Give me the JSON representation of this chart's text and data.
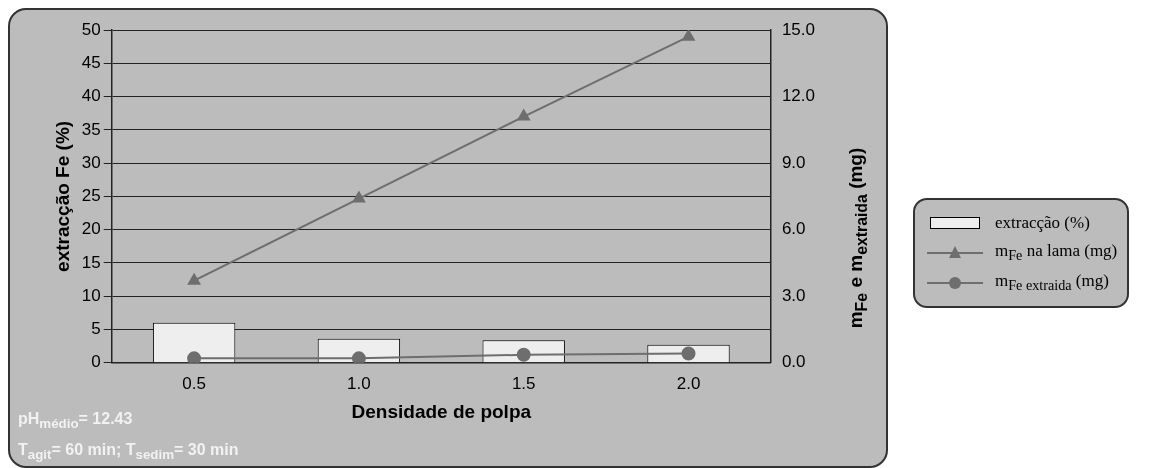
{
  "chart_data": {
    "type": "bar",
    "xlabel": "Densidade de polpa",
    "ylabel": "extracção Fe (%)",
    "y2label": "m$_{Fe}$ e m$_{extraida}$ (mg)",
    "categories": [
      "0.5",
      "1.0",
      "1.5",
      "2.0"
    ],
    "series": [
      {
        "name": "extracção (%)",
        "color": "#eeeeee",
        "values": [
          6.0,
          3.6,
          3.4,
          2.7
        ]
      },
      {
        "name": "m$_{Fe}$ na lama (mg)",
        "type": "line",
        "axis": "y2",
        "marker": "triangle",
        "color": "#6e6e6e",
        "values": [
          3.7,
          7.4,
          11.1,
          14.7
        ]
      },
      {
        "name": "m$_{Fe extraida}$ (mg)",
        "type": "line",
        "axis": "y2",
        "marker": "circle",
        "color": "#6e6e6e",
        "values": [
          0.2,
          0.2,
          0.36,
          0.42
        ]
      }
    ],
    "ylim": [
      0,
      50
    ],
    "yticks": [
      0,
      5,
      10,
      15,
      20,
      25,
      30,
      35,
      40,
      45,
      50
    ],
    "y2lim": [
      0,
      15
    ],
    "y2ticks": [
      {
        "value": 0,
        "label": "0.0"
      },
      {
        "value": 3,
        "label": "3.0"
      },
      {
        "value": 6,
        "label": "6.0"
      },
      {
        "value": 9,
        "label": "9.0"
      },
      {
        "value": 12,
        "label": "12.0"
      },
      {
        "value": 15,
        "label": "15.0"
      }
    ],
    "grid": "y",
    "legend": "right",
    "annotations": [
      "pH$_{médio}$= 12.43",
      "T$_{agit}$=  60 min; T$_{sedim}$= 30 min"
    ]
  }
}
